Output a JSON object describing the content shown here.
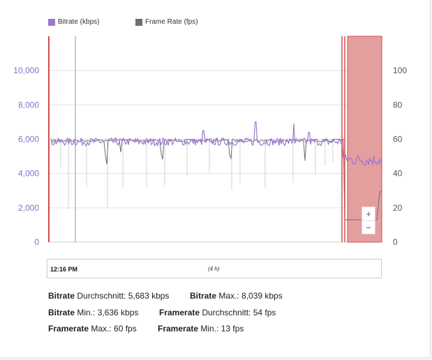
{
  "legend": {
    "bitrate_label": "Bitrate (kbps)",
    "framerate_label": "Frame Rate (fps)"
  },
  "colors": {
    "bitrate": "#9a78d0",
    "framerate": "#6e6e6e",
    "highlight": "#e59e9e",
    "highlight_border": "#d24b4b"
  },
  "chart_data": {
    "type": "line",
    "series": [
      {
        "name": "Bitrate (kbps)",
        "axis": "left",
        "baseline": 5850,
        "spikes_up": [
          6500,
          7000,
          6900,
          6500
        ],
        "drop_after": 4800
      },
      {
        "name": "Frame Rate (fps)",
        "axis": "right",
        "baseline": 60,
        "min": 13,
        "max": 60
      }
    ],
    "y_left": {
      "ticks": [
        "0",
        "2,000",
        "4,000",
        "6,000",
        "8,000",
        "10,000"
      ],
      "ylim": [
        0,
        12000
      ]
    },
    "y_right": {
      "ticks": [
        "0",
        "20",
        "40",
        "60",
        "80",
        "100"
      ],
      "ylim": [
        0,
        120
      ]
    },
    "grid": true
  },
  "timeline": {
    "start_time": "12:16 PM",
    "duration": "(4 h)"
  },
  "zoom": {
    "in": "+",
    "out": "−"
  },
  "stats": {
    "bitrate_avg": {
      "key": "Bitrate",
      "label": " Durchschnitt: 5,683 kbps"
    },
    "bitrate_max": {
      "key": "Bitrate",
      "label": " Max.: 8,039 kbps"
    },
    "bitrate_min": {
      "key": "Bitrate",
      "label": " Min.: 3,636 kbps"
    },
    "framerate_avg": {
      "key": "Framerate",
      "label": " Durchschnitt: 54 fps"
    },
    "framerate_max": {
      "key": "Framerate",
      "label": " Max.: 60 fps"
    },
    "framerate_min": {
      "key": "Framerate",
      "label": " Min.: 13 fps"
    }
  }
}
